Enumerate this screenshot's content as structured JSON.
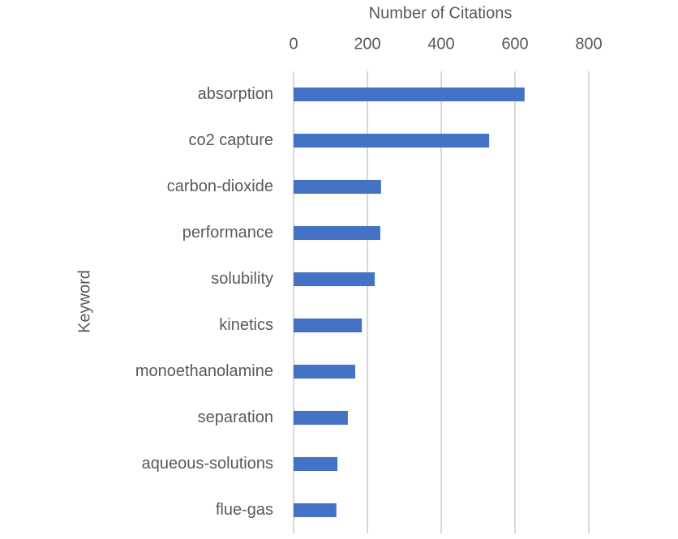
{
  "chart_data": {
    "type": "bar",
    "orientation": "horizontal",
    "x_label": "Number of Citations",
    "y_label": "Keyword",
    "categories": [
      "absorption",
      "co2 capture",
      "carbon-dioxide",
      "performance",
      "solubility",
      "kinetics",
      "monoethanolamine",
      "separation",
      "aqueous-solutions",
      "flue-gas"
    ],
    "values": [
      626,
      530,
      237,
      235,
      220,
      185,
      167,
      147,
      119,
      116
    ],
    "color": "#4472c4",
    "xlim": [
      0,
      800
    ],
    "xticks": [
      0,
      200,
      400,
      600,
      800
    ],
    "x_axis_position": "top",
    "grid": true
  }
}
